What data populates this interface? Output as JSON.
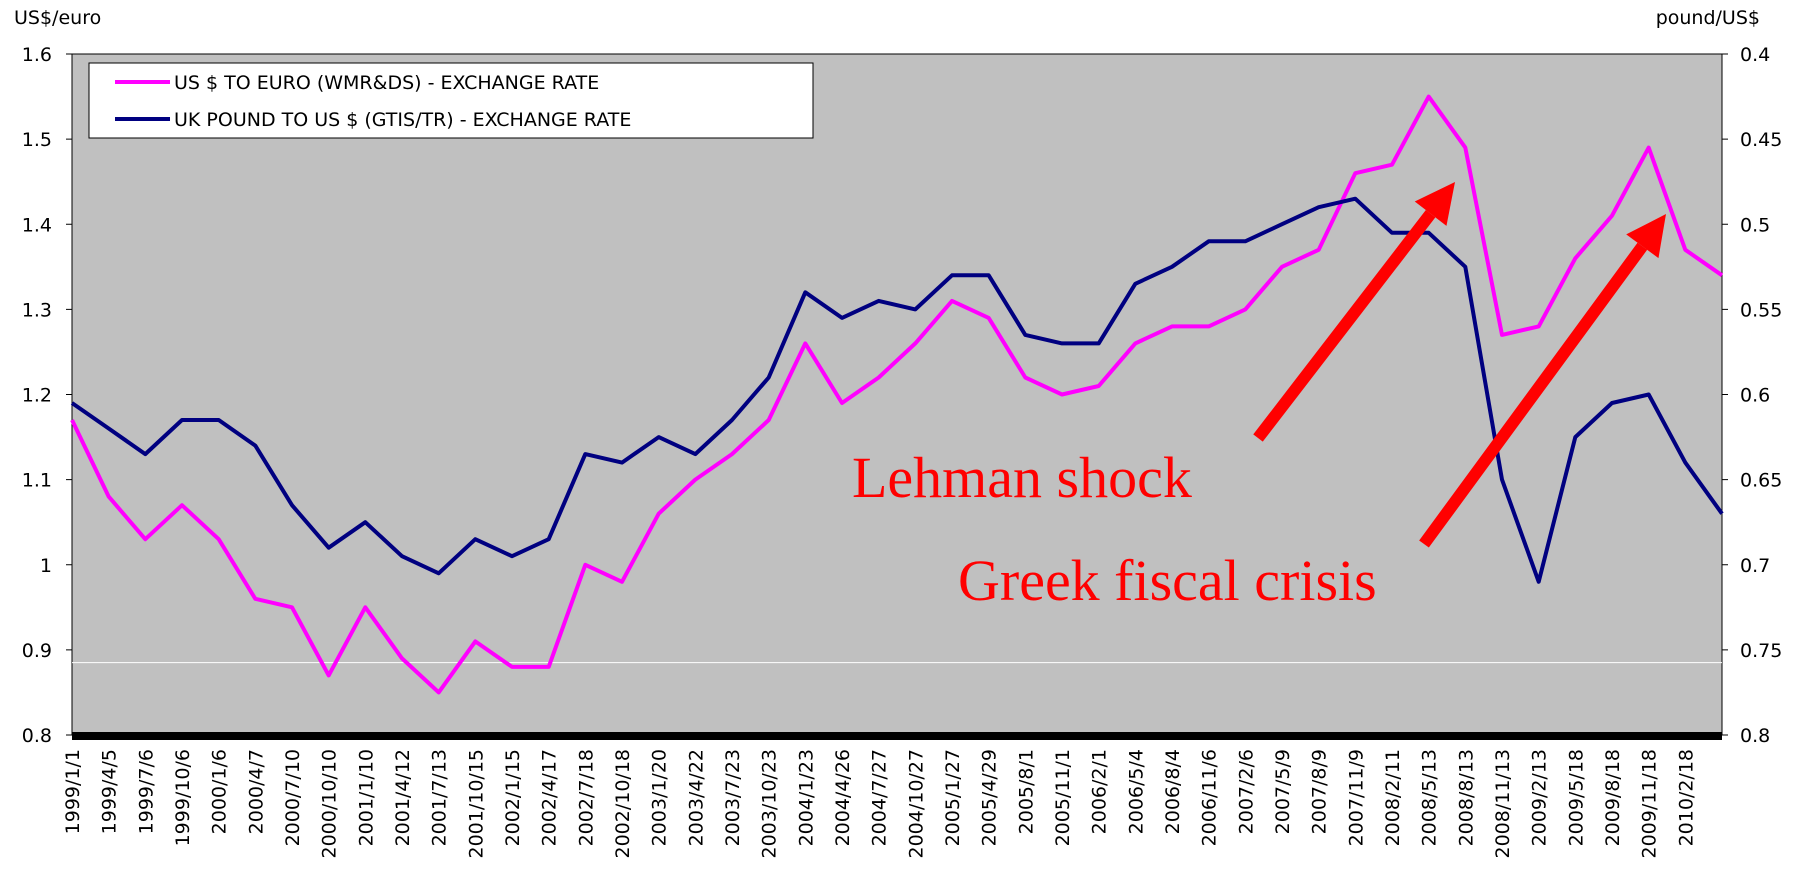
{
  "chart_data": {
    "type": "line",
    "y_label": "US$/euro",
    "y2_label": "pound/US$",
    "categories": [
      "1999/1/1",
      "1999/4/5",
      "1999/7/6",
      "1999/10/6",
      "2000/1/6",
      "2000/4/7",
      "2000/7/10",
      "2000/10/10",
      "2001/1/10",
      "2001/4/12",
      "2001/7/13",
      "2001/10/15",
      "2002/1/15",
      "2002/4/17",
      "2002/7/18",
      "2002/10/18",
      "2003/1/20",
      "2003/4/22",
      "2003/7/23",
      "2003/10/23",
      "2004/1/23",
      "2004/4/26",
      "2004/7/27",
      "2004/10/27",
      "2005/1/27",
      "2005/4/29",
      "2005/8/1",
      "2005/11/1",
      "2006/2/1",
      "2006/5/4",
      "2006/8/4",
      "2006/11/6",
      "2007/2/6",
      "2007/5/9",
      "2007/8/9",
      "2007/11/9",
      "2008/2/11",
      "2008/5/13",
      "2008/8/13",
      "2008/11/13",
      "2009/2/13",
      "2009/5/18",
      "2009/8/18",
      "2009/11/18",
      "2010/2/18",
      null
    ],
    "series": [
      {
        "name": "US $ TO EURO (WMR&DS) - EXCHANGE RATE",
        "color": "#ff00ff",
        "values": [
          1.17,
          1.08,
          1.03,
          1.07,
          1.03,
          0.96,
          0.95,
          0.87,
          0.95,
          0.89,
          0.85,
          0.91,
          0.88,
          0.88,
          1.0,
          0.98,
          1.06,
          1.1,
          1.13,
          1.17,
          1.26,
          1.19,
          1.22,
          1.26,
          1.31,
          1.29,
          1.22,
          1.2,
          1.21,
          1.26,
          1.28,
          1.28,
          1.3,
          1.35,
          1.37,
          1.46,
          1.47,
          1.55,
          1.49,
          1.27,
          1.28,
          1.36,
          1.41,
          1.49,
          1.37,
          1.34
        ]
      },
      {
        "name": "UK POUND TO US $ (GTIS/TR) - EXCHANGE RATE",
        "color": "#000080",
        "axis": "y2",
        "values": [
          0.605,
          0.62,
          0.635,
          0.615,
          0.615,
          0.63,
          0.665,
          0.69,
          0.675,
          0.695,
          0.705,
          0.685,
          0.695,
          0.685,
          0.635,
          0.64,
          0.625,
          0.635,
          0.615,
          0.59,
          0.54,
          0.555,
          0.545,
          0.55,
          0.53,
          0.53,
          0.565,
          0.57,
          0.57,
          0.535,
          0.525,
          0.51,
          0.51,
          0.5,
          0.49,
          0.485,
          0.505,
          0.505,
          0.525,
          0.65,
          0.71,
          0.625,
          0.605,
          0.6,
          0.64,
          0.67
        ]
      }
    ],
    "ylim": [
      0.8,
      1.6
    ],
    "yticks": [
      0.8,
      0.9,
      1,
      1.1,
      1.2,
      1.3,
      1.4,
      1.5,
      1.6
    ],
    "y2lim": [
      0.8,
      0.4
    ],
    "y2ticks": [
      0.8,
      0.75,
      0.7,
      0.65,
      0.6,
      0.55,
      0.5,
      0.45,
      0.4
    ],
    "legend": "upper left",
    "annotations": [
      "Lehman shock",
      "Greek fiscal crisis"
    ]
  }
}
